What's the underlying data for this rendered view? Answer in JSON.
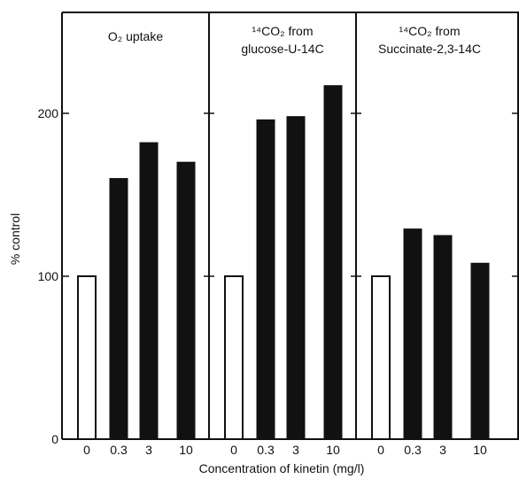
{
  "chart_data": {
    "type": "bar",
    "ylabel": "% control",
    "xlabel": "Concentration of kinetin (mg/l)",
    "yticks": [
      0,
      100,
      200
    ],
    "ylim": [
      0,
      255
    ],
    "categories": [
      "0",
      "0.3",
      "3",
      "10"
    ],
    "bar_styles": [
      "open",
      "filled",
      "filled",
      "filled"
    ],
    "panels": [
      {
        "title": [
          "O₂ uptake"
        ],
        "values": [
          100,
          160,
          182,
          170
        ]
      },
      {
        "title": [
          "¹⁴CO₂ from",
          "glucose-U-14C"
        ],
        "values": [
          100,
          196,
          198,
          217
        ]
      },
      {
        "title": [
          "¹⁴CO₂ from",
          "Succinate-2,3-14C"
        ],
        "values": [
          100,
          129,
          125,
          108
        ]
      }
    ]
  }
}
